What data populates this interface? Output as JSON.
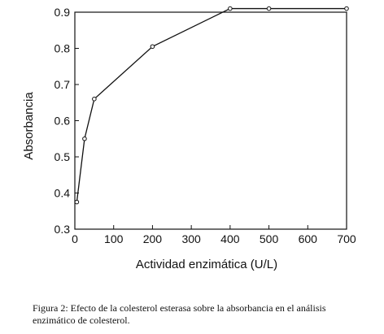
{
  "chart_data": {
    "type": "line",
    "xlabel": "Actividad enzimática  (U/L)",
    "ylabel": "Absorbancia",
    "xlim": [
      0,
      700
    ],
    "ylim": [
      0.3,
      0.9
    ],
    "xticks": [
      "0",
      "100",
      "200",
      "300",
      "400",
      "500",
      "600",
      "700"
    ],
    "yticks": [
      "0.3",
      "0.4",
      "0.5",
      "0.6",
      "0.7",
      "0.8",
      "0.9"
    ],
    "grid": false,
    "marker": "open-circle",
    "series": [
      {
        "x": [
          5,
          25,
          50,
          200,
          400,
          500,
          700
        ],
        "y": [
          0.375,
          0.55,
          0.66,
          0.805,
          0.91,
          0.91,
          0.91
        ]
      }
    ]
  },
  "caption": {
    "line1": "Figura 2: Efecto de la colesterol esterasa sobre la absorbancia en el análisis",
    "line2": "enzimático de colesterol."
  }
}
